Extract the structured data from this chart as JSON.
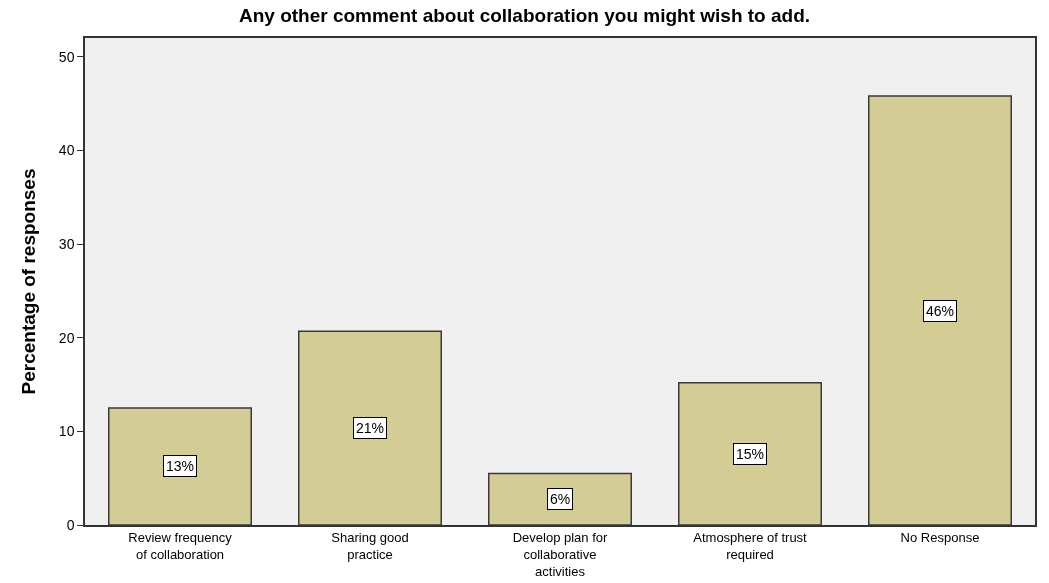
{
  "chart_data": {
    "type": "bar",
    "title": "Any other comment about collaboration you might wish to add.",
    "ylabel": "Percentage of responses",
    "categories": [
      "Review frequency\nof collaboration",
      "Sharing good\npractice",
      "Develop plan for\ncollaborative\nactivities",
      "Atmosphere of trust\nrequired",
      "No Response"
    ],
    "values": [
      12.5,
      20.7,
      5.5,
      15.2,
      45.8
    ],
    "value_labels": [
      "13%",
      "21%",
      "6%",
      "15%",
      "46%"
    ],
    "color": "#d3cd95",
    "ylim": [
      0,
      52
    ],
    "yticks": [
      0,
      10,
      20,
      30,
      40,
      50
    ],
    "grid": false
  }
}
